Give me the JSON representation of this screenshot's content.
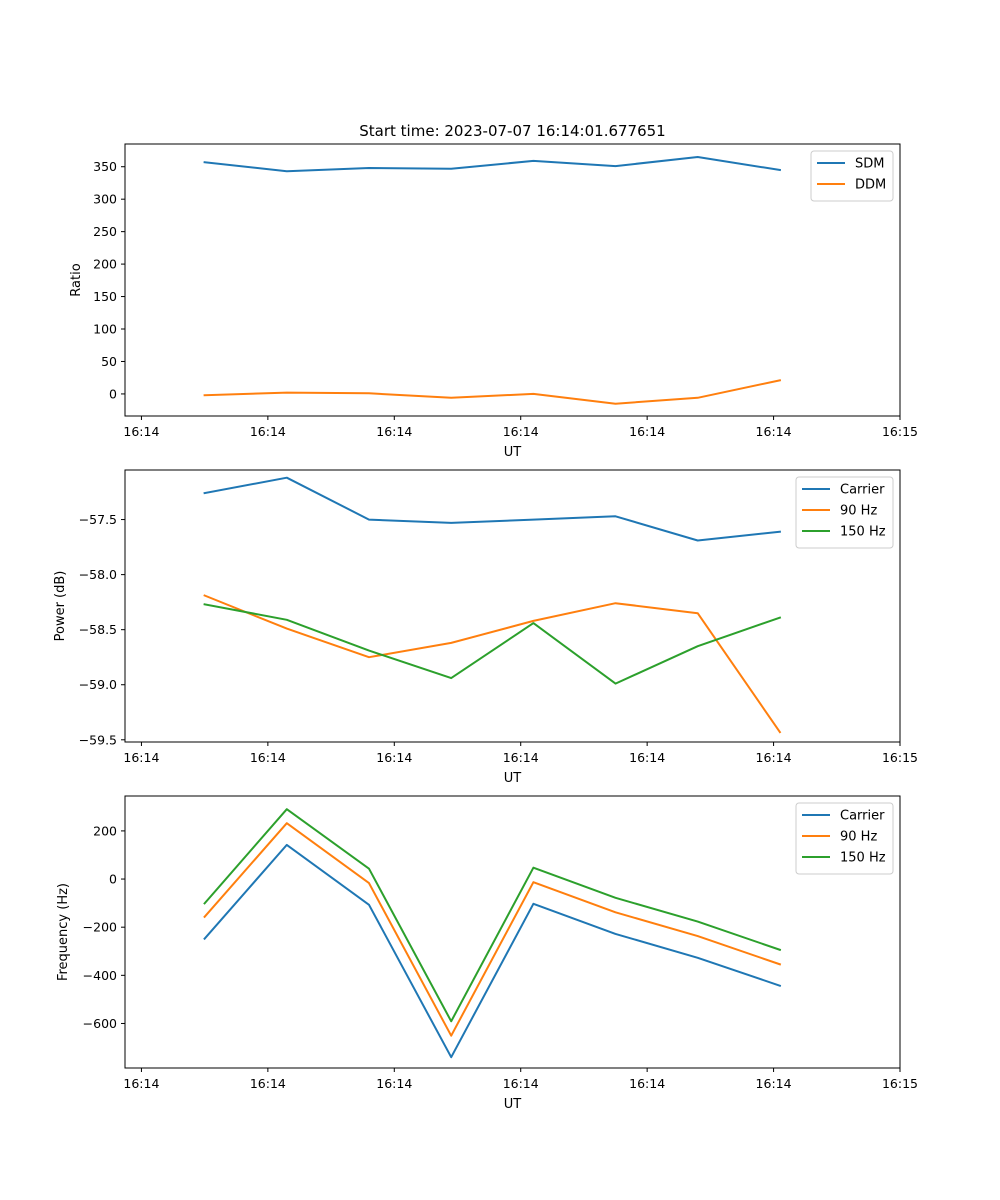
{
  "title": "Start time: 2023-07-07 16:14:01.677651",
  "chart_data": [
    {
      "type": "line",
      "title": "Start time: 2023-07-07 16:14:01.677651",
      "xlabel": "UT",
      "ylabel": "Ratio",
      "x_tick_labels": [
        "16:14",
        "16:14",
        "16:14",
        "16:14",
        "16:14",
        "16:14",
        "16:15"
      ],
      "x": [
        0.5,
        1.15,
        1.8,
        2.45,
        3.1,
        3.75,
        4.4,
        5.05
      ],
      "xlim": [
        -0.13,
        6.0
      ],
      "y_ticks": [
        0,
        50,
        100,
        150,
        200,
        250,
        300,
        350
      ],
      "ylim": [
        -34,
        385
      ],
      "legend": "top-right",
      "series": [
        {
          "name": "SDM",
          "color": "#1f77b4",
          "values": [
            357,
            343,
            348,
            347,
            359,
            351,
            365,
            345
          ]
        },
        {
          "name": "DDM",
          "color": "#ff7f0e",
          "values": [
            -2,
            2,
            1,
            -6,
            0,
            -15,
            -6,
            21
          ]
        }
      ]
    },
    {
      "type": "line",
      "title": "",
      "xlabel": "UT",
      "ylabel": "Power (dB)",
      "x_tick_labels": [
        "16:14",
        "16:14",
        "16:14",
        "16:14",
        "16:14",
        "16:14",
        "16:15"
      ],
      "x": [
        0.5,
        1.15,
        1.8,
        2.45,
        3.1,
        3.75,
        4.4,
        5.05
      ],
      "xlim": [
        -0.13,
        6.0
      ],
      "y_ticks": [
        -59.5,
        -59.0,
        -58.5,
        -58.0,
        -57.5
      ],
      "y_tick_labels": [
        "−59.5",
        "−59.0",
        "−58.5",
        "−58.0",
        "−57.5"
      ],
      "ylim": [
        -59.52,
        -57.05
      ],
      "legend": "top-right",
      "series": [
        {
          "name": "Carrier",
          "color": "#1f77b4",
          "values": [
            -57.26,
            -57.12,
            -57.5,
            -57.53,
            -57.5,
            -57.47,
            -57.69,
            -57.61
          ]
        },
        {
          "name": "90 Hz",
          "color": "#ff7f0e",
          "values": [
            -58.19,
            -58.49,
            -58.75,
            -58.62,
            -58.42,
            -58.26,
            -58.35,
            -59.43
          ]
        },
        {
          "name": "150 Hz",
          "color": "#2ca02c",
          "values": [
            -58.27,
            -58.41,
            -58.69,
            -58.94,
            -58.44,
            -58.99,
            -58.65,
            -58.39
          ]
        }
      ]
    },
    {
      "type": "line",
      "title": "",
      "xlabel": "UT",
      "ylabel": "Frequency (Hz)",
      "x_tick_labels": [
        "16:14",
        "16:14",
        "16:14",
        "16:14",
        "16:14",
        "16:14",
        "16:15"
      ],
      "x": [
        0.5,
        1.15,
        1.8,
        2.45,
        3.1,
        3.75,
        4.4,
        5.05
      ],
      "xlim": [
        -0.13,
        6.0
      ],
      "y_ticks": [
        -600,
        -400,
        -200,
        0,
        200
      ],
      "y_tick_labels": [
        "−600",
        "−400",
        "−200",
        "0",
        "200"
      ],
      "ylim": [
        -785,
        345
      ],
      "legend": "top-right",
      "series": [
        {
          "name": "Carrier",
          "color": "#1f77b4",
          "values": [
            -248,
            142,
            -107,
            -740,
            -103,
            -228,
            -327,
            -443
          ]
        },
        {
          "name": "90 Hz",
          "color": "#ff7f0e",
          "values": [
            -157,
            232,
            -17,
            -651,
            -13,
            -138,
            -237,
            -354
          ]
        },
        {
          "name": "150 Hz",
          "color": "#2ca02c",
          "values": [
            -101,
            290,
            43,
            -591,
            47,
            -78,
            -177,
            -294
          ]
        }
      ]
    }
  ]
}
